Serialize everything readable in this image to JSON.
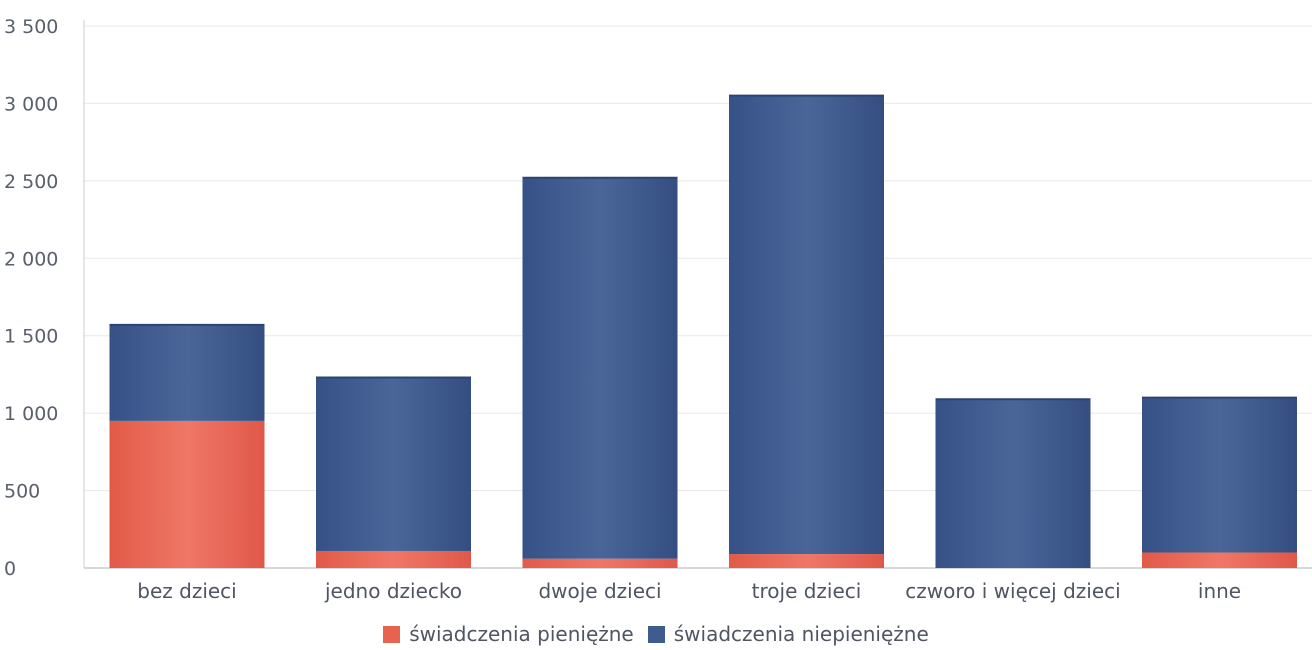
{
  "chart_data": {
    "type": "bar",
    "stacked": true,
    "categories": [
      "bez dzieci",
      "jedno dziecko",
      "dwoje dzieci",
      "troje dzieci",
      "czworo i więcej dzieci",
      "inne"
    ],
    "series": [
      {
        "name": "świadczenia pieniężne",
        "color": "#e86250",
        "values": [
          950,
          110,
          60,
          90,
          0,
          100
        ]
      },
      {
        "name": "świadczenia niepieniężne",
        "color": "#3f5c8f",
        "values": [
          620,
          1120,
          2460,
          2960,
          1090,
          1000
        ]
      }
    ],
    "ylim": [
      0,
      3500
    ],
    "yticks": [
      0,
      500,
      1000,
      1500,
      2000,
      2500,
      3000,
      3500
    ],
    "ytick_labels": [
      "0",
      "500",
      "1 000",
      "1 500",
      "2 000",
      "2 500",
      "3 000",
      "3 500"
    ],
    "grid": true,
    "legend_position": "bottom-center",
    "title": "",
    "xlabel": "",
    "ylabel": ""
  }
}
